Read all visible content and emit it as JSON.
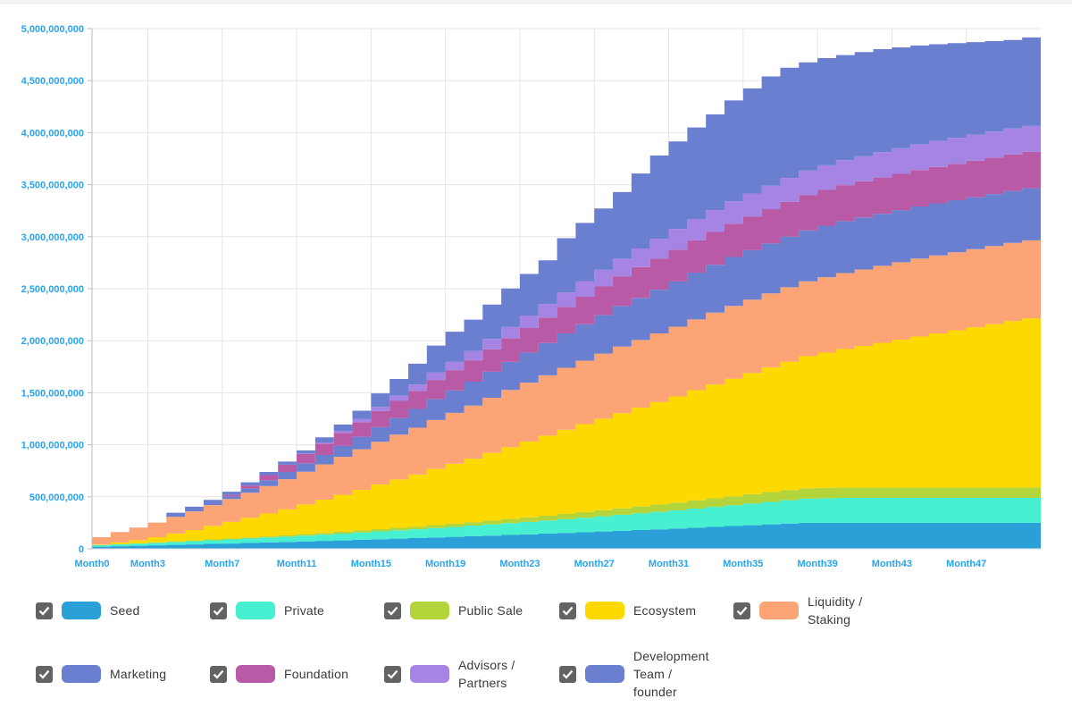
{
  "chart_data": {
    "type": "area",
    "step": true,
    "stacked": true,
    "title": "",
    "xlabel": "",
    "ylabel": "",
    "ylim": [
      0,
      5000000000
    ],
    "y_ticks": [
      0,
      500000000,
      1000000000,
      1500000000,
      2000000000,
      2500000000,
      3000000000,
      3500000000,
      4000000000,
      4500000000,
      5000000000
    ],
    "y_tick_labels": [
      "0",
      "500,000,000",
      "1,000,000,000",
      "1,500,000,000",
      "2,000,000,000",
      "2,500,000,000",
      "3,000,000,000",
      "3,500,000,000",
      "4,000,000,000",
      "4,500,000,000",
      "5,000,000,000"
    ],
    "x_categories": [
      "Month0",
      "Month1",
      "Month2",
      "Month3",
      "Month4",
      "Month5",
      "Month6",
      "Month7",
      "Month8",
      "Month9",
      "Month10",
      "Month11",
      "Month12",
      "Month13",
      "Month14",
      "Month15",
      "Month16",
      "Month17",
      "Month18",
      "Month19",
      "Month20",
      "Month21",
      "Month22",
      "Month23",
      "Month24",
      "Month25",
      "Month26",
      "Month27",
      "Month28",
      "Month29",
      "Month30",
      "Month31",
      "Month32",
      "Month33",
      "Month34",
      "Month35",
      "Month36",
      "Month37",
      "Month38",
      "Month39",
      "Month40",
      "Month41",
      "Month42",
      "Month43",
      "Month44",
      "Month45",
      "Month46",
      "Month47",
      "Month48",
      "Month49",
      "Month50"
    ],
    "x_tick_labels": [
      "Month0",
      "Month3",
      "Month7",
      "Month11",
      "Month15",
      "Month19",
      "Month23",
      "Month27",
      "Month31",
      "Month35",
      "Month39",
      "Month43",
      "Month47"
    ],
    "grid": true,
    "legend_position": "bottom",
    "series": [
      {
        "name": "Seed",
        "color": "#2a9fd8",
        "values": [
          20000000,
          25000000,
          29000000,
          33000000,
          38000000,
          42000000,
          47000000,
          51000000,
          56000000,
          61000000,
          66000000,
          71000000,
          76000000,
          81000000,
          87000000,
          92000000,
          98000000,
          103000000,
          109000000,
          115000000,
          121000000,
          127000000,
          133000000,
          139000000,
          146000000,
          152000000,
          159000000,
          166000000,
          173000000,
          180000000,
          187000000,
          195000000,
          203000000,
          211000000,
          219000000,
          227000000,
          235000000,
          243000000,
          250000000,
          250000000,
          250000000,
          250000000,
          250000000,
          250000000,
          250000000,
          250000000,
          250000000,
          250000000,
          250000000,
          250000000,
          250000000
        ]
      },
      {
        "name": "Private",
        "color": "#46f0d0",
        "values": [
          15000000,
          18000000,
          21000000,
          24000000,
          28000000,
          31000000,
          35000000,
          39000000,
          43000000,
          47000000,
          51000000,
          56000000,
          60000000,
          65000000,
          70000000,
          75000000,
          80000000,
          85000000,
          91000000,
          96000000,
          102000000,
          108000000,
          114000000,
          120000000,
          126000000,
          133000000,
          140000000,
          147000000,
          154000000,
          161000000,
          168000000,
          176000000,
          184000000,
          192000000,
          200000000,
          208000000,
          216000000,
          224000000,
          232000000,
          236000000,
          240000000,
          240000000,
          240000000,
          240000000,
          240000000,
          240000000,
          240000000,
          240000000,
          240000000,
          240000000,
          240000000
        ]
      },
      {
        "name": "Public Sale",
        "color": "#b4d43c",
        "values": [
          2000000,
          3000000,
          4000000,
          5000000,
          6000000,
          7000000,
          8000000,
          9000000,
          10000000,
          11000000,
          12000000,
          14000000,
          16000000,
          18000000,
          20000000,
          22000000,
          24000000,
          26000000,
          28000000,
          31000000,
          34000000,
          37000000,
          40000000,
          43000000,
          46000000,
          50000000,
          54000000,
          58000000,
          62000000,
          66000000,
          70000000,
          74000000,
          78000000,
          82000000,
          86000000,
          90000000,
          94000000,
          97000000,
          99000000,
          100000000,
          100000000,
          100000000,
          100000000,
          100000000,
          100000000,
          100000000,
          100000000,
          100000000,
          100000000,
          100000000,
          100000000
        ]
      },
      {
        "name": "Ecosystem",
        "color": "#fdd900",
        "values": [
          5000000,
          15000000,
          30000000,
          50000000,
          75000000,
          100000000,
          130000000,
          160000000,
          190000000,
          220000000,
          250000000,
          285000000,
          320000000,
          355000000,
          390000000,
          430000000,
          465000000,
          500000000,
          540000000,
          575000000,
          610000000,
          650000000,
          690000000,
          730000000,
          770000000,
          810000000,
          845000000,
          880000000,
          915000000,
          950000000,
          985000000,
          1020000000,
          1060000000,
          1095000000,
          1130000000,
          1165000000,
          1200000000,
          1235000000,
          1270000000,
          1300000000,
          1330000000,
          1360000000,
          1390000000,
          1420000000,
          1450000000,
          1480000000,
          1510000000,
          1540000000,
          1570000000,
          1600000000,
          1625000000
        ]
      },
      {
        "name": "Liquidity /\nStaking",
        "color": "#fca476",
        "values": [
          70000000,
          100000000,
          120000000,
          140000000,
          160000000,
          180000000,
          200000000,
          220000000,
          240000000,
          265000000,
          290000000,
          315000000,
          340000000,
          365000000,
          390000000,
          410000000,
          430000000,
          450000000,
          470000000,
          490000000,
          510000000,
          530000000,
          550000000,
          565000000,
          580000000,
          595000000,
          610000000,
          625000000,
          640000000,
          650000000,
          660000000,
          670000000,
          680000000,
          690000000,
          700000000,
          705000000,
          710000000,
          715000000,
          720000000,
          725000000,
          730000000,
          735000000,
          740000000,
          745000000,
          750000000,
          750000000,
          750000000,
          750000000,
          750000000,
          750000000,
          750000000
        ]
      },
      {
        "name": "Marketing",
        "color": "#6a7fd0",
        "values": [
          0,
          0,
          0,
          0,
          0,
          5000000,
          10000000,
          25000000,
          40000000,
          55000000,
          70000000,
          80000000,
          90000000,
          105000000,
          120000000,
          140000000,
          160000000,
          180000000,
          200000000,
          215000000,
          230000000,
          250000000,
          270000000,
          290000000,
          310000000,
          330000000,
          350000000,
          370000000,
          390000000,
          405000000,
          420000000,
          435000000,
          450000000,
          460000000,
          470000000,
          475000000,
          480000000,
          485000000,
          490000000,
          495000000,
          500000000,
          500000000,
          500000000,
          500000000,
          500000000,
          500000000,
          500000000,
          500000000,
          500000000,
          500000000,
          500000000
        ]
      },
      {
        "name": "Foundation",
        "color": "#b85aa6",
        "values": [
          0,
          0,
          0,
          0,
          0,
          0,
          0,
          15000000,
          30000000,
          50000000,
          70000000,
          90000000,
          110000000,
          125000000,
          140000000,
          155000000,
          165000000,
          175000000,
          185000000,
          195000000,
          205000000,
          215000000,
          225000000,
          235000000,
          245000000,
          255000000,
          265000000,
          275000000,
          285000000,
          295000000,
          300000000,
          305000000,
          310000000,
          315000000,
          320000000,
          325000000,
          330000000,
          335000000,
          340000000,
          343000000,
          345000000,
          347000000,
          348000000,
          349000000,
          350000000,
          350000000,
          350000000,
          350000000,
          350000000,
          350000000,
          350000000
        ]
      },
      {
        "name": "Advisors /\nPartners",
        "color": "#a584e3",
        "values": [
          0,
          0,
          0,
          0,
          0,
          0,
          0,
          0,
          0,
          0,
          0,
          5000000,
          10000000,
          20000000,
          30000000,
          40000000,
          50000000,
          60000000,
          70000000,
          80000000,
          90000000,
          100000000,
          110000000,
          120000000,
          130000000,
          140000000,
          150000000,
          160000000,
          170000000,
          180000000,
          190000000,
          200000000,
          205000000,
          210000000,
          215000000,
          220000000,
          225000000,
          230000000,
          235000000,
          238000000,
          240000000,
          242000000,
          244000000,
          246000000,
          248000000,
          250000000,
          250000000,
          250000000,
          250000000,
          250000000,
          250000000
        ]
      },
      {
        "name": "Development\nTeam /\nfounder",
        "color": "#6a7fd0",
        "values": [
          0,
          0,
          0,
          0,
          40000000,
          40000000,
          40000000,
          30000000,
          30000000,
          30000000,
          30000000,
          30000000,
          50000000,
          60000000,
          80000000,
          130000000,
          160000000,
          200000000,
          260000000,
          290000000,
          300000000,
          330000000,
          370000000,
          400000000,
          420000000,
          520000000,
          560000000,
          590000000,
          640000000,
          720000000,
          800000000,
          840000000,
          880000000,
          920000000,
          970000000,
          1010000000,
          1050000000,
          1060000000,
          1040000000,
          1030000000,
          1010000000,
          1000000000,
          990000000,
          970000000,
          950000000,
          930000000,
          910000000,
          890000000,
          870000000,
          850000000,
          850000000
        ]
      }
    ]
  },
  "legend": {
    "items": [
      {
        "label": "Seed",
        "color": "#2a9fd8"
      },
      {
        "label": "Private",
        "color": "#46f0d0"
      },
      {
        "label": "Public Sale",
        "color": "#b4d43c"
      },
      {
        "label": "Ecosystem",
        "color": "#fdd900"
      },
      {
        "label": "Liquidity /\nStaking",
        "color": "#fca476"
      },
      {
        "label": "Marketing",
        "color": "#6a7fd0"
      },
      {
        "label": "Foundation",
        "color": "#b85aa6"
      },
      {
        "label": "Advisors /\nPartners",
        "color": "#a584e3"
      },
      {
        "label": "Development\nTeam /\nfounder",
        "color": "#6a7fd0"
      }
    ]
  },
  "colors": {
    "tick_label": "#26a4f0",
    "grid": "#e6e6e6",
    "checkbox": "#636363"
  }
}
